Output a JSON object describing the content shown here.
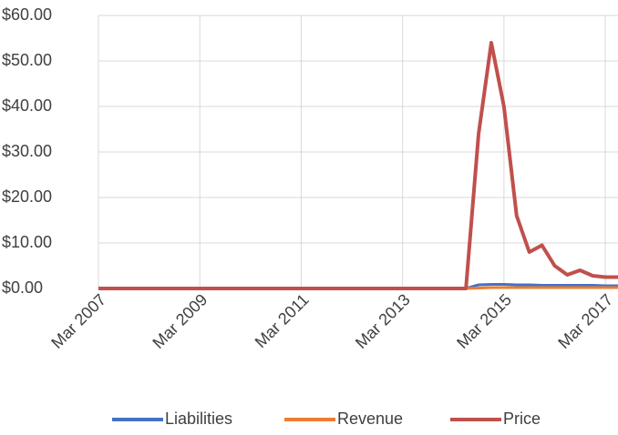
{
  "chart_data": {
    "type": "line",
    "categories": [
      "Mar 2007",
      null,
      null,
      null,
      null,
      null,
      null,
      null,
      "Mar 2009",
      null,
      null,
      null,
      null,
      null,
      null,
      null,
      "Mar 2011",
      null,
      null,
      null,
      null,
      null,
      null,
      null,
      "Mar 2013",
      null,
      null,
      null,
      null,
      null,
      null,
      null,
      "Mar 2015",
      null,
      null,
      null,
      null,
      null,
      null,
      null,
      "Mar 2017",
      null
    ],
    "series": [
      {
        "name": "Liabilities",
        "color": "#4472c4",
        "values": [
          0,
          0,
          0,
          0,
          0,
          0,
          0,
          0,
          0,
          0,
          0,
          0,
          0,
          0,
          0,
          0,
          0,
          0,
          0,
          0,
          0,
          0,
          0,
          0,
          0,
          0,
          0,
          0,
          0,
          0,
          0.8,
          0.9,
          0.9,
          0.8,
          0.8,
          0.7,
          0.7,
          0.7,
          0.7,
          0.7,
          0.6,
          0.6
        ]
      },
      {
        "name": "Revenue",
        "color": "#ed7d31",
        "values": [
          0,
          0,
          0,
          0,
          0,
          0,
          0,
          0,
          0,
          0,
          0,
          0,
          0,
          0,
          0,
          0,
          0,
          0,
          0,
          0,
          0,
          0,
          0,
          0,
          0,
          0,
          0,
          0,
          0,
          0,
          0.1,
          0.2,
          0.2,
          0.2,
          0.2,
          0.2,
          0.2,
          0.2,
          0.2,
          0.2,
          0.2,
          0.2
        ]
      },
      {
        "name": "Price",
        "color": "#c0504d",
        "values": [
          0,
          0,
          0,
          0,
          0,
          0,
          0,
          0,
          0,
          0,
          0,
          0,
          0,
          0,
          0,
          0,
          0,
          0,
          0,
          0,
          0,
          0,
          0,
          0,
          0,
          0,
          0,
          0,
          0,
          0,
          34,
          54,
          40,
          16,
          8,
          9.5,
          5,
          3,
          4,
          2.8,
          2.5,
          2.5
        ]
      }
    ],
    "ylim": [
      0,
      60
    ],
    "yticks": [
      {
        "value": 0,
        "label": "$0.00"
      },
      {
        "value": 10,
        "label": "$10.00"
      },
      {
        "value": 20,
        "label": "$20.00"
      },
      {
        "value": 30,
        "label": "$30.00"
      },
      {
        "value": 40,
        "label": "$40.00"
      },
      {
        "value": 50,
        "label": "$50.00"
      },
      {
        "value": 60,
        "label": "$60.00"
      }
    ],
    "grid": true,
    "legend": "bottom"
  }
}
